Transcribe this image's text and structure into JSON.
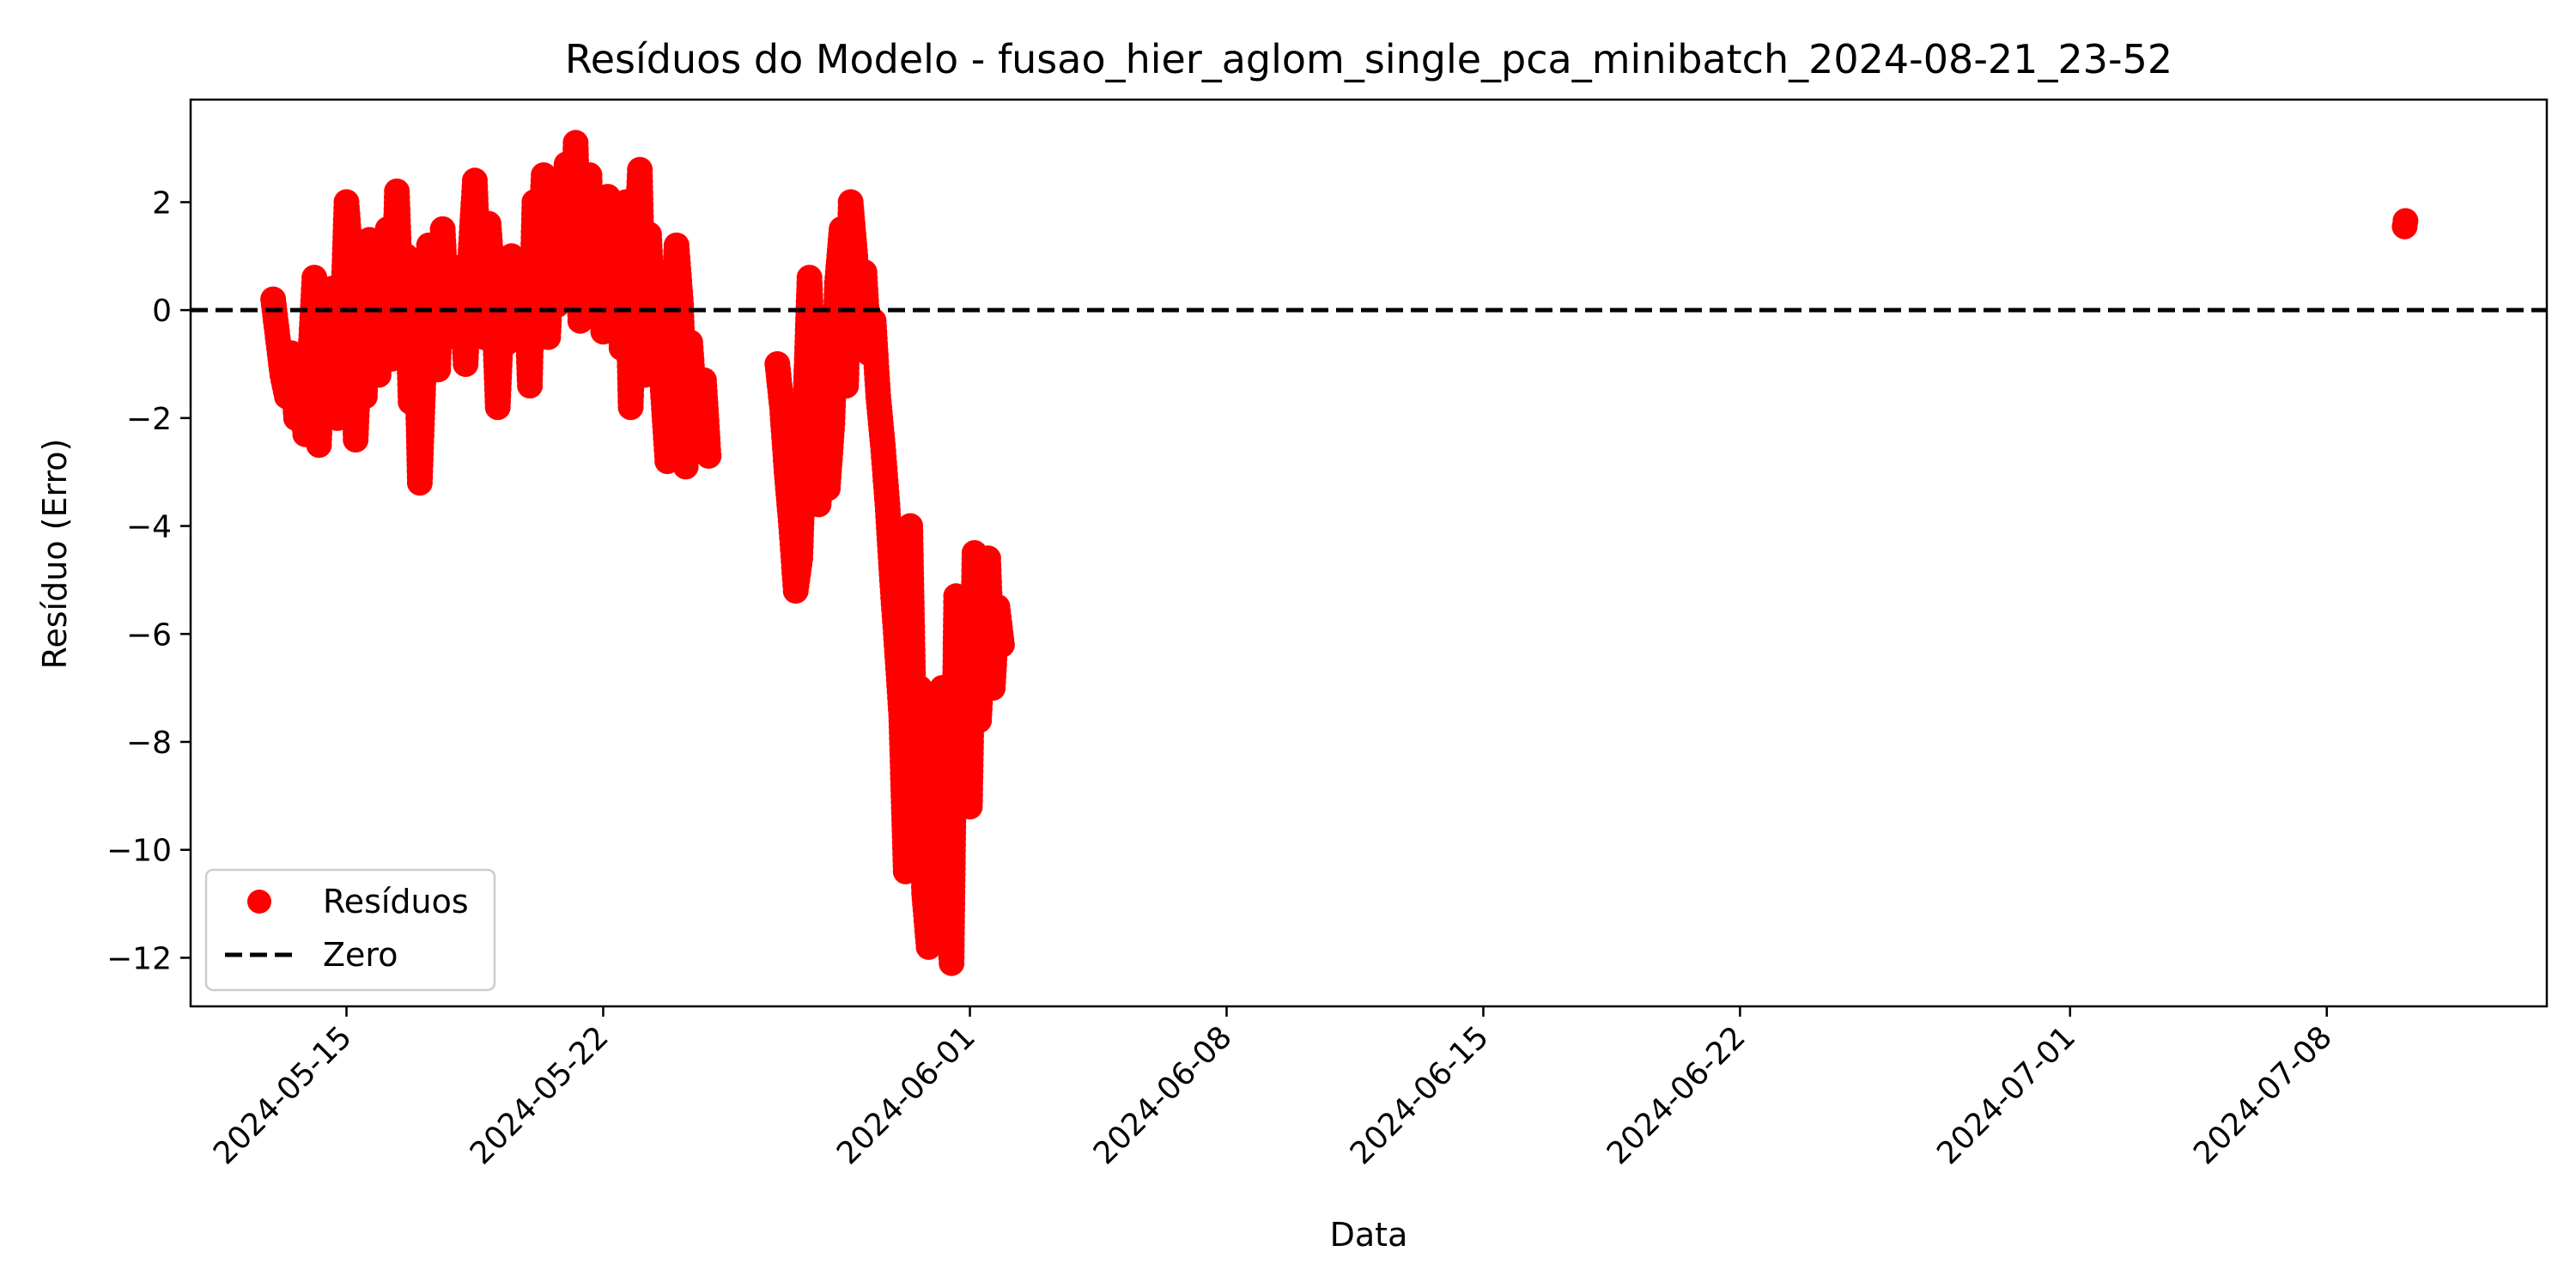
{
  "colors": {
    "points": "#ff0000",
    "zero_line": "#000000",
    "axes": "#000000",
    "background": "#ffffff"
  },
  "chart_data": {
    "type": "scatter",
    "title": "Resíduos do Modelo - fusao_hier_aglom_single_pca_minibatch_2024-08-21_23-52",
    "xlabel": "Data",
    "ylabel": "Resíduo (Erro)",
    "x_axis_type": "date",
    "xlim": [
      "2024-05-10T18:00",
      "2024-07-14T00:00"
    ],
    "ylim": [
      -12.9,
      3.9
    ],
    "x_ticks": [
      "2024-05-15",
      "2024-05-22",
      "2024-06-01",
      "2024-06-08",
      "2024-06-15",
      "2024-06-22",
      "2024-07-01",
      "2024-07-08"
    ],
    "y_ticks": [
      2,
      0,
      -2,
      -4,
      -6,
      -8,
      -10,
      -12
    ],
    "y_tick_labels": [
      "2",
      "0",
      "−2",
      "−4",
      "−6",
      "−8",
      "−10",
      "−12"
    ],
    "grid": false,
    "legend_position": "lower-left",
    "reference_lines": [
      {
        "name": "Zero",
        "y": 0,
        "style": "dashed"
      }
    ],
    "legend": [
      {
        "label": "Resíduos",
        "kind": "marker"
      },
      {
        "label": "Zero",
        "kind": "dashed-line"
      }
    ],
    "series": [
      {
        "name": "Resíduos",
        "points": [
          [
            "2024-05-13T00:00",
            0.2
          ],
          [
            "2024-05-13T03:00",
            -0.5
          ],
          [
            "2024-05-13T06:00",
            -1.2
          ],
          [
            "2024-05-13T09:00",
            -1.6
          ],
          [
            "2024-05-13T12:00",
            -0.8
          ],
          [
            "2024-05-13T15:00",
            -2.0
          ],
          [
            "2024-05-13T18:00",
            -1.4
          ],
          [
            "2024-05-13T21:00",
            -2.3
          ],
          [
            "2024-05-14T00:00",
            -1.0
          ],
          [
            "2024-05-14T03:00",
            0.6
          ],
          [
            "2024-05-14T06:00",
            -2.5
          ],
          [
            "2024-05-14T09:00",
            -0.3
          ],
          [
            "2024-05-14T12:00",
            -1.5
          ],
          [
            "2024-05-14T15:00",
            0.4
          ],
          [
            "2024-05-14T18:00",
            -2.0
          ],
          [
            "2024-05-14T21:00",
            -0.6
          ],
          [
            "2024-05-15T00:00",
            2.0
          ],
          [
            "2024-05-15T03:00",
            0.9
          ],
          [
            "2024-05-15T06:00",
            -2.4
          ],
          [
            "2024-05-15T09:00",
            -0.4
          ],
          [
            "2024-05-15T12:00",
            -1.6
          ],
          [
            "2024-05-15T15:00",
            1.3
          ],
          [
            "2024-05-15T18:00",
            -0.5
          ],
          [
            "2024-05-15T21:00",
            -1.2
          ],
          [
            "2024-05-16T00:00",
            0.3
          ],
          [
            "2024-05-16T03:00",
            1.5
          ],
          [
            "2024-05-16T06:00",
            -0.9
          ],
          [
            "2024-05-16T09:00",
            2.2
          ],
          [
            "2024-05-16T12:00",
            -0.2
          ],
          [
            "2024-05-16T15:00",
            1.0
          ],
          [
            "2024-05-16T18:00",
            -1.7
          ],
          [
            "2024-05-16T21:00",
            0.6
          ],
          [
            "2024-05-17T00:00",
            -3.2
          ],
          [
            "2024-05-17T03:00",
            -0.8
          ],
          [
            "2024-05-17T06:00",
            1.2
          ],
          [
            "2024-05-17T09:00",
            0.0
          ],
          [
            "2024-05-17T12:00",
            -1.1
          ],
          [
            "2024-05-17T15:00",
            1.5
          ],
          [
            "2024-05-17T18:00",
            -0.3
          ],
          [
            "2024-05-17T21:00",
            0.8
          ],
          [
            "2024-05-18T00:00",
            -0.5
          ],
          [
            "2024-05-18T03:00",
            0.4
          ],
          [
            "2024-05-18T06:00",
            -1.0
          ],
          [
            "2024-05-18T09:00",
            1.0
          ],
          [
            "2024-05-18T12:00",
            2.4
          ],
          [
            "2024-05-18T15:00",
            0.3
          ],
          [
            "2024-05-18T18:00",
            -0.5
          ],
          [
            "2024-05-18T21:00",
            1.6
          ],
          [
            "2024-05-19T00:00",
            0.5
          ],
          [
            "2024-05-19T03:00",
            -1.8
          ],
          [
            "2024-05-19T06:00",
            0.2
          ],
          [
            "2024-05-19T09:00",
            -0.6
          ],
          [
            "2024-05-19T12:00",
            1.0
          ],
          [
            "2024-05-19T15:00",
            0.4
          ],
          [
            "2024-05-19T18:00",
            -0.3
          ],
          [
            "2024-05-19T21:00",
            0.9
          ],
          [
            "2024-05-20T00:00",
            -1.4
          ],
          [
            "2024-05-20T03:00",
            2.0
          ],
          [
            "2024-05-20T06:00",
            0.6
          ],
          [
            "2024-05-20T09:00",
            2.5
          ],
          [
            "2024-05-20T12:00",
            -0.5
          ],
          [
            "2024-05-20T15:00",
            1.3
          ],
          [
            "2024-05-20T18:00",
            0.1
          ],
          [
            "2024-05-20T21:00",
            1.8
          ],
          [
            "2024-05-21T00:00",
            2.7
          ],
          [
            "2024-05-21T03:00",
            0.8
          ],
          [
            "2024-05-21T06:00",
            3.1
          ],
          [
            "2024-05-21T09:00",
            -0.2
          ],
          [
            "2024-05-21T12:00",
            1.6
          ],
          [
            "2024-05-21T15:00",
            2.5
          ],
          [
            "2024-05-21T18:00",
            0.5
          ],
          [
            "2024-05-21T21:00",
            1.0
          ],
          [
            "2024-05-22T00:00",
            -0.4
          ],
          [
            "2024-05-22T03:00",
            2.1
          ],
          [
            "2024-05-22T06:00",
            0.8
          ],
          [
            "2024-05-22T09:00",
            1.6
          ],
          [
            "2024-05-22T12:00",
            -0.7
          ],
          [
            "2024-05-22T15:00",
            2.0
          ],
          [
            "2024-05-22T18:00",
            -1.8
          ],
          [
            "2024-05-22T21:00",
            0.6
          ],
          [
            "2024-05-23T00:00",
            2.6
          ],
          [
            "2024-05-23T03:00",
            -1.2
          ],
          [
            "2024-05-23T06:00",
            1.4
          ],
          [
            "2024-05-23T09:00",
            -0.3
          ],
          [
            "2024-05-23T12:00",
            0.3
          ],
          [
            "2024-05-23T15:00",
            -1.5
          ],
          [
            "2024-05-23T18:00",
            -2.8
          ],
          [
            "2024-05-23T21:00",
            -0.4
          ],
          [
            "2024-05-24T00:00",
            1.2
          ],
          [
            "2024-05-24T03:00",
            0.1
          ],
          [
            "2024-05-24T06:00",
            -2.9
          ],
          [
            "2024-05-24T09:00",
            -0.6
          ],
          [
            "2024-05-24T12:00",
            -1.8
          ],
          [
            "2024-05-24T15:00",
            -2.4
          ],
          [
            "2024-05-24T18:00",
            -1.3
          ],
          [
            "2024-05-24T21:00",
            -2.7
          ],
          [
            "2024-05-26T18:00",
            -1.0
          ],
          [
            "2024-05-26T21:00",
            -1.8
          ],
          [
            "2024-05-27T00:00",
            -3.0
          ],
          [
            "2024-05-27T03:00",
            -4.0
          ],
          [
            "2024-05-27T06:00",
            -5.2
          ],
          [
            "2024-05-27T09:00",
            -4.6
          ],
          [
            "2024-05-27T12:00",
            -2.0
          ],
          [
            "2024-05-27T15:00",
            0.6
          ],
          [
            "2024-05-27T18:00",
            -1.4
          ],
          [
            "2024-05-27T21:00",
            -3.6
          ],
          [
            "2024-05-28T00:00",
            -2.6
          ],
          [
            "2024-05-28T03:00",
            -3.3
          ],
          [
            "2024-05-28T06:00",
            -2.1
          ],
          [
            "2024-05-28T09:00",
            0.5
          ],
          [
            "2024-05-28T12:00",
            1.5
          ],
          [
            "2024-05-28T15:00",
            -1.4
          ],
          [
            "2024-05-28T18:00",
            2.0
          ],
          [
            "2024-05-28T21:00",
            1.0
          ],
          [
            "2024-05-29T00:00",
            -0.4
          ],
          [
            "2024-05-29T03:00",
            0.7
          ],
          [
            "2024-05-29T06:00",
            -0.8
          ],
          [
            "2024-05-29T09:00",
            -0.2
          ],
          [
            "2024-05-29T12:00",
            -1.6
          ],
          [
            "2024-05-29T15:00",
            -2.5
          ],
          [
            "2024-05-29T18:00",
            -3.6
          ],
          [
            "2024-05-29T21:00",
            -5.0
          ],
          [
            "2024-05-30T00:00",
            -6.2
          ],
          [
            "2024-05-30T03:00",
            -7.5
          ],
          [
            "2024-05-30T06:00",
            -10.4
          ],
          [
            "2024-05-30T09:00",
            -4.0
          ],
          [
            "2024-05-30T12:00",
            -8.7
          ],
          [
            "2024-05-30T15:00",
            -7.0
          ],
          [
            "2024-05-30T18:00",
            -10.8
          ],
          [
            "2024-05-30T21:00",
            -11.8
          ],
          [
            "2024-05-31T00:00",
            -8.3
          ],
          [
            "2024-05-31T03:00",
            -9.5
          ],
          [
            "2024-05-31T06:00",
            -7.0
          ],
          [
            "2024-05-31T09:00",
            -11.0
          ],
          [
            "2024-05-31T12:00",
            -12.1
          ],
          [
            "2024-05-31T15:00",
            -5.3
          ],
          [
            "2024-05-31T18:00",
            -9.0
          ],
          [
            "2024-05-31T21:00",
            -6.8
          ],
          [
            "2024-06-01T00:00",
            -9.2
          ],
          [
            "2024-06-01T03:00",
            -4.5
          ],
          [
            "2024-06-01T06:00",
            -7.6
          ],
          [
            "2024-06-01T09:00",
            -5.8
          ],
          [
            "2024-06-01T12:00",
            -4.6
          ],
          [
            "2024-06-01T15:00",
            -7.0
          ],
          [
            "2024-06-01T18:00",
            -5.5
          ],
          [
            "2024-06-01T21:00",
            -6.2
          ],
          [
            "2024-07-10T03:00",
            1.55
          ],
          [
            "2024-07-10T03:30",
            1.65
          ]
        ]
      }
    ]
  }
}
